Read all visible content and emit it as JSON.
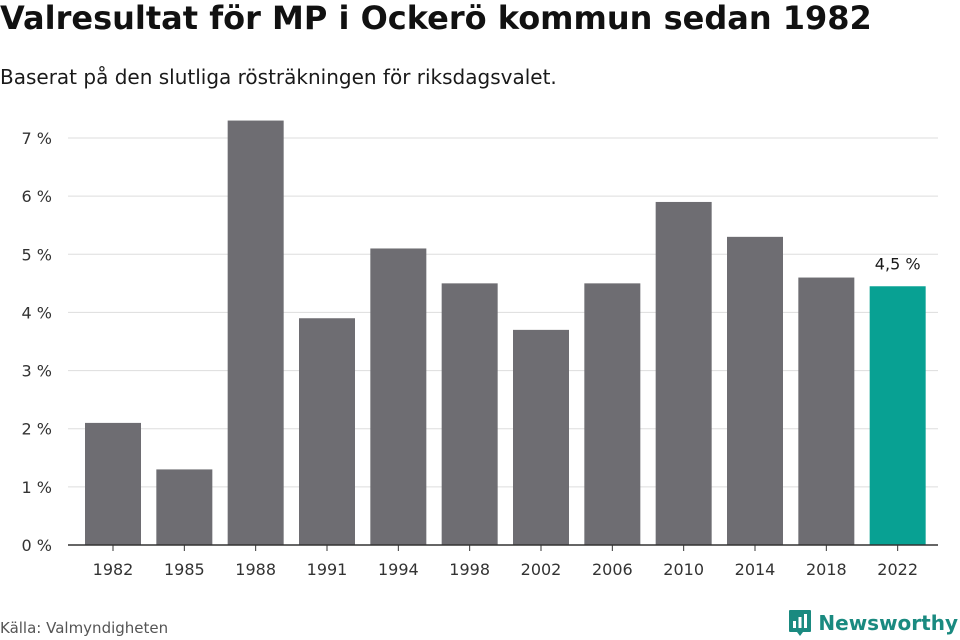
{
  "header": {
    "title": "Valresultat för MP i Ockerö kommun sedan 1982",
    "subtitle": "Baserat på den slutliga rösträkningen för riksdagsvalet."
  },
  "footer": {
    "source": "Källa: Valmyndigheten",
    "brand": "Newsworthy",
    "brand_icon": "bar-chart-logo-icon"
  },
  "colors": {
    "bar": "#6e6d72",
    "highlight": "#08a193",
    "grid": "#dddddd",
    "axis": "#333333",
    "brand": "#1a8a80"
  },
  "chart_data": {
    "type": "bar",
    "title": "Valresultat för MP i Ockerö kommun sedan 1982",
    "subtitle": "Baserat på den slutliga rösträkningen för riksdagsvalet.",
    "xlabel": "",
    "ylabel": "",
    "categories": [
      "1982",
      "1985",
      "1988",
      "1991",
      "1994",
      "1998",
      "2002",
      "2006",
      "2010",
      "2014",
      "2018",
      "2022"
    ],
    "values": [
      2.1,
      1.3,
      7.3,
      3.9,
      5.1,
      4.5,
      3.7,
      4.5,
      5.9,
      5.3,
      4.6,
      4.45
    ],
    "ylim": [
      0,
      7
    ],
    "yticks": [
      0,
      1,
      2,
      3,
      4,
      5,
      6,
      7
    ],
    "ytick_labels": [
      "0 %",
      "1 %",
      "2 %",
      "3 %",
      "4 %",
      "5 %",
      "6 %",
      "7 %"
    ],
    "grid": true,
    "highlight_index": 11,
    "annotations": [
      {
        "category": "2022",
        "text": "4,5 %"
      }
    ]
  }
}
